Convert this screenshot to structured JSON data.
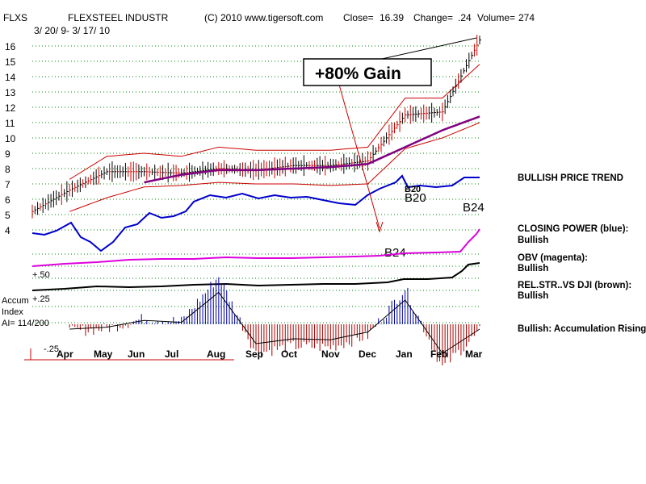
{
  "header": {
    "ticker": "FLXS",
    "company": "FLEXSTEEL INDUSTR",
    "copyright": "(C) 2010 www.tigersoft.com",
    "close_label": "Close=",
    "close_value": "16.39",
    "change_label": "Change=",
    "change_value": ".24",
    "volume_label": "Volume=",
    "volume_value": "274",
    "date_range": "3/ 20/ 9- 3/ 17/ 10"
  },
  "annotations": {
    "gain_box": "+80% Gain",
    "signals": [
      "B20",
      "B24",
      "B24",
      "B20"
    ]
  },
  "accum_panel": {
    "title_line1": "Accum",
    "title_line2": "Index",
    "ai_text": "AI= 114/200",
    "level_high": "+.50",
    "level_mid": "+.25",
    "level_low": "-.25"
  },
  "side_labels": {
    "price_trend": "BULLISH PRICE TREND",
    "closing_power_title": "CLOSING POWER (blue):",
    "closing_power_value": "Bullish",
    "obv_title": "OBV (magenta):",
    "obv_value": "Bullish",
    "relstr_title": "REL.STR..VS DJI (brown):",
    "relstr_value": "Bullish",
    "accum_text": "Bullish: Accumulation Rising"
  },
  "colors": {
    "price_bars": "#000000",
    "up_bars": "#cc0000",
    "bands": "#cc0000",
    "moving_average": "#800080",
    "closing_power": "#0000cc",
    "obv": "#dd00dd",
    "rel_strength": "#000000",
    "accum_positive": "#0000aa",
    "accum_negative": "#aa0000",
    "gridline": "#008000"
  },
  "chart_data": {
    "type": "line",
    "ylim": [
      4,
      16
    ],
    "y_ticks": [
      "16",
      "15",
      "14",
      "13",
      "12",
      "11",
      "10",
      "9",
      "8",
      "7",
      "6",
      "5",
      "4"
    ],
    "x_ticks": [
      "Apr",
      "May",
      "Jun",
      "Jul",
      "Aug",
      "Sep",
      "Oct",
      "Nov",
      "Dec",
      "Jan",
      "Feb",
      "Mar"
    ],
    "x": [
      "Mar-20",
      "Apr",
      "May",
      "Jun",
      "Jul",
      "Aug",
      "Sep",
      "Oct",
      "Nov",
      "Dec",
      "Jan",
      "Feb",
      "Mar-17"
    ],
    "series": [
      {
        "name": "CLOSING POWER (blue)",
        "values": [
          null,
          null,
          null,
          null,
          null,
          null,
          null,
          null,
          null,
          null,
          null,
          null,
          null
        ]
      }
    ],
    "price": [
      5.2,
      6.6,
      7.8,
      7.8,
      7.7,
      8.0,
      7.9,
      8.2,
      8.2,
      8.5,
      11.5,
      11.7,
      16.39
    ],
    "upper_band": [
      null,
      7.3,
      8.8,
      9.0,
      8.8,
      9.4,
      9.2,
      9.2,
      9.2,
      9.4,
      12.6,
      12.6,
      14.8
    ],
    "lower_band": [
      null,
      5.2,
      6.1,
      6.8,
      6.9,
      7.1,
      7.0,
      7.0,
      6.9,
      7.0,
      9.3,
      10.0,
      11.0
    ],
    "moving_average": [
      null,
      null,
      null,
      7.1,
      7.6,
      7.9,
      7.9,
      8.0,
      8.1,
      8.3,
      9.4,
      10.5,
      11.4
    ],
    "accumulation": [
      null,
      -0.05,
      -0.03,
      0.04,
      0.02,
      0.33,
      -0.2,
      -0.15,
      -0.16,
      -0.08,
      0.25,
      -0.3,
      -0.05
    ]
  }
}
